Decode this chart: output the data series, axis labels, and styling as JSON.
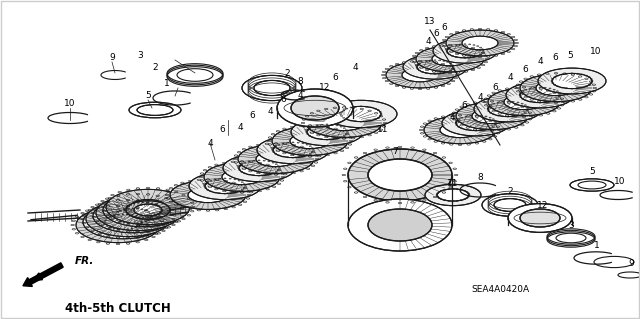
{
  "title": "4th-5th CLUTCH",
  "part_number": "SEA4A0420A",
  "background_color": "#ffffff",
  "line_color": "#1a1a1a",
  "text_color": "#000000",
  "fig_width": 6.4,
  "fig_height": 3.19,
  "dpi": 100,
  "border_color": "#cccccc"
}
